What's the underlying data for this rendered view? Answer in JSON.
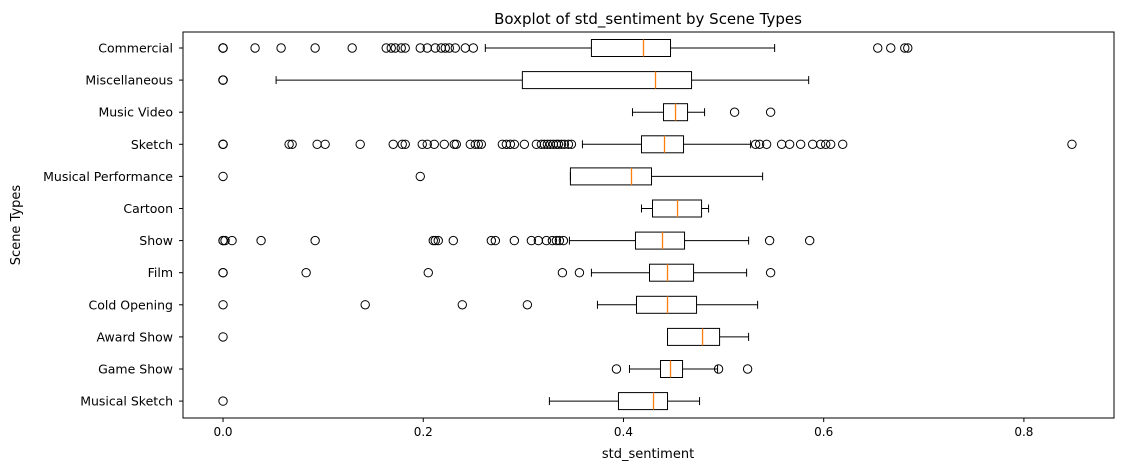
{
  "chart_data": {
    "type": "boxplot",
    "orientation": "horizontal",
    "title": "Boxplot of std_sentiment by Scene Types",
    "xlabel": "std_sentiment",
    "ylabel": "Scene Types",
    "xlim": [
      -0.04,
      0.89
    ],
    "xticks": [
      0.0,
      0.2,
      0.4,
      0.6,
      0.8
    ],
    "xtick_labels": [
      "0.0",
      "0.2",
      "0.4",
      "0.6",
      "0.8"
    ],
    "grid": false,
    "colors": {
      "box": "#000000",
      "median": "#ff7f0e",
      "background": "#ffffff"
    },
    "series": [
      {
        "label": "Commercial",
        "whislo": 0.262,
        "q1": 0.368,
        "med": 0.42,
        "q3": 0.447,
        "whishi": 0.551,
        "fliers": [
          0.0,
          0.0,
          0.0,
          0.032,
          0.058,
          0.092,
          0.129,
          0.163,
          0.168,
          0.172,
          0.178,
          0.182,
          0.197,
          0.204,
          0.212,
          0.218,
          0.222,
          0.226,
          0.232,
          0.242,
          0.25,
          0.654,
          0.667,
          0.681,
          0.684
        ]
      },
      {
        "label": "Miscellaneous",
        "whislo": 0.053,
        "q1": 0.299,
        "med": 0.432,
        "q3": 0.468,
        "whishi": 0.585,
        "fliers": [
          0.0,
          0.0,
          0.0
        ]
      },
      {
        "label": "Music Video",
        "whislo": 0.409,
        "q1": 0.44,
        "med": 0.452,
        "q3": 0.464,
        "whishi": 0.481,
        "fliers": [
          0.511,
          0.547
        ]
      },
      {
        "label": "Sketch",
        "whislo": 0.359,
        "q1": 0.418,
        "med": 0.441,
        "q3": 0.46,
        "whishi": 0.527,
        "fliers": [
          0.0,
          0.0,
          0.0,
          0.066,
          0.069,
          0.094,
          0.102,
          0.137,
          0.17,
          0.179,
          0.182,
          0.199,
          0.204,
          0.211,
          0.221,
          0.231,
          0.233,
          0.247,
          0.252,
          0.255,
          0.258,
          0.279,
          0.283,
          0.287,
          0.291,
          0.301,
          0.313,
          0.318,
          0.321,
          0.324,
          0.327,
          0.33,
          0.333,
          0.335,
          0.338,
          0.341,
          0.345,
          0.348,
          0.532,
          0.536,
          0.543,
          0.558,
          0.566,
          0.577,
          0.589,
          0.597,
          0.602,
          0.607,
          0.619,
          0.848
        ]
      },
      {
        "label": "Musical Performance",
        "whislo": 0.347,
        "q1": 0.347,
        "med": 0.408,
        "q3": 0.428,
        "whishi": 0.539,
        "fliers": [
          0.0,
          0.197
        ]
      },
      {
        "label": "Cartoon",
        "whislo": 0.418,
        "q1": 0.429,
        "med": 0.454,
        "q3": 0.478,
        "whishi": 0.485,
        "fliers": []
      },
      {
        "label": "Show",
        "whislo": 0.346,
        "q1": 0.412,
        "med": 0.439,
        "q3": 0.461,
        "whishi": 0.525,
        "fliers": [
          0.0,
          0.0,
          0.002,
          0.009,
          0.038,
          0.092,
          0.21,
          0.212,
          0.215,
          0.23,
          0.268,
          0.272,
          0.291,
          0.308,
          0.315,
          0.323,
          0.329,
          0.333,
          0.336,
          0.34,
          0.546,
          0.586
        ]
      },
      {
        "label": "Film",
        "whislo": 0.368,
        "q1": 0.426,
        "med": 0.444,
        "q3": 0.47,
        "whishi": 0.523,
        "fliers": [
          0.0,
          0.0,
          0.083,
          0.205,
          0.339,
          0.356,
          0.547
        ]
      },
      {
        "label": "Cold Opening",
        "whislo": 0.374,
        "q1": 0.413,
        "med": 0.444,
        "q3": 0.473,
        "whishi": 0.534,
        "fliers": [
          0.0,
          0.142,
          0.239,
          0.304
        ]
      },
      {
        "label": "Award Show",
        "whislo": 0.444,
        "q1": 0.444,
        "med": 0.479,
        "q3": 0.496,
        "whishi": 0.525,
        "fliers": [
          0.0
        ]
      },
      {
        "label": "Game Show",
        "whislo": 0.406,
        "q1": 0.437,
        "med": 0.447,
        "q3": 0.459,
        "whishi": 0.494,
        "fliers": [
          0.393,
          0.495,
          0.524
        ]
      },
      {
        "label": "Musical Sketch",
        "whislo": 0.326,
        "q1": 0.395,
        "med": 0.43,
        "q3": 0.444,
        "whishi": 0.476,
        "fliers": [
          0.0
        ]
      }
    ]
  }
}
